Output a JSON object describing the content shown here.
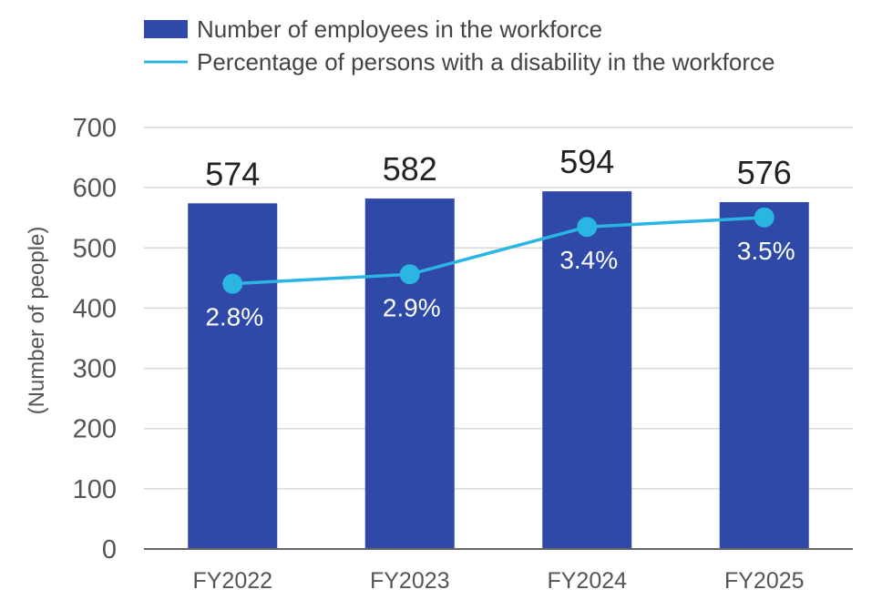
{
  "chart_data": {
    "type": "bar",
    "categories": [
      "FY2022",
      "FY2023",
      "FY2024",
      "FY2025"
    ],
    "series": [
      {
        "name": "Number of employees in the workforce",
        "type": "bar",
        "values": [
          574,
          582,
          594,
          576
        ],
        "labels": [
          "574",
          "582",
          "594",
          "576"
        ],
        "color": "#2f49a8"
      },
      {
        "name": "Percentage of persons with a disability in the workforce",
        "type": "line",
        "values": [
          2.8,
          2.9,
          3.4,
          3.5
        ],
        "labels": [
          "2.8%",
          "2.9%",
          "3.4%",
          "3.5%"
        ],
        "color": "#2bb5e3"
      }
    ],
    "ylabel": "(Number of people)",
    "ylim": [
      0,
      700
    ],
    "yticks": [
      "0",
      "100",
      "200",
      "300",
      "400",
      "500",
      "600",
      "700"
    ],
    "grid": true,
    "legend_position": "top"
  }
}
